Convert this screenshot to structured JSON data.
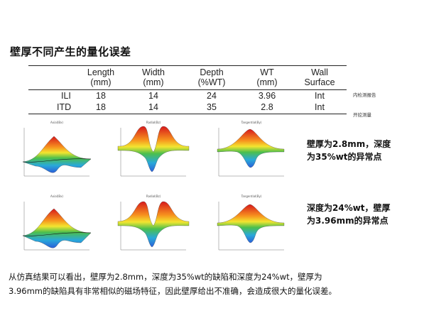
{
  "title": "壁厚不同产生的量化误差",
  "table": {
    "columns": [
      {
        "line1": "Length",
        "line2": "(mm)"
      },
      {
        "line1": "Width",
        "line2": "(mm)"
      },
      {
        "line1": "Depth",
        "line2": "(%WT)"
      },
      {
        "line1": "WT",
        "line2": "(mm)"
      },
      {
        "line1": "Wall",
        "line2": "Surface"
      }
    ],
    "rows": [
      {
        "label": "ILI",
        "values": [
          "18",
          "14",
          "24",
          "3.96",
          "Int"
        ],
        "note": "内检测报告"
      },
      {
        "label": "ITD",
        "values": [
          "18",
          "14",
          "35",
          "2.8",
          "Int"
        ],
        "note": "开挖测量"
      }
    ]
  },
  "plots": {
    "row1": [
      "Axial(Bx)",
      "Radial(Bz)",
      "Tangential(By)"
    ],
    "row2": [
      "Axial(Bx)",
      "Radial(Bz)",
      "Tangential(By)"
    ]
  },
  "captions": {
    "first": [
      "壁厚为2.8mm，深度",
      "为35%wt的异常点"
    ],
    "second": [
      "深度为24%wt，壁厚",
      "为3.96mm的异常点"
    ]
  },
  "conclusion": {
    "line1": "从仿真结果可以看出，壁厚为2.8mm，深度为35%wt的缺陷和深度为24%wt，壁厚为",
    "line2": "3.96mm的缺陷具有非常相似的磁场特征，因此壁厚给出不准确，会造成很大的量化误差。"
  },
  "colors": {
    "peak_red": "#d7191c",
    "mid_yellow": "#f2e530",
    "mid_green": "#4cbf4c",
    "low_blue": "#2b5fd9"
  }
}
